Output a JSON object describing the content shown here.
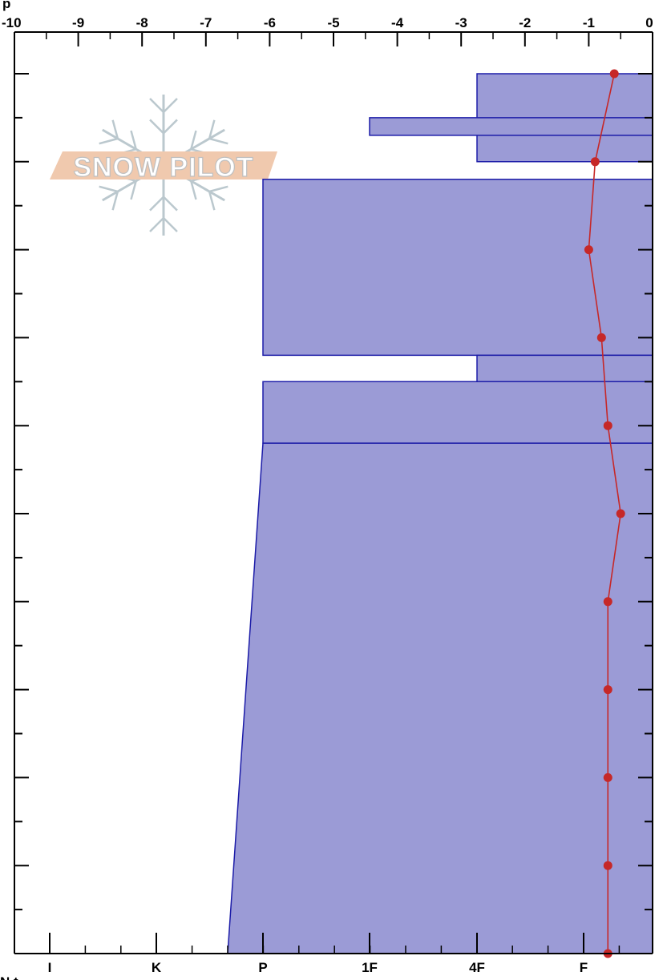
{
  "chart_data": {
    "type": "snow-profile",
    "title": "",
    "temperature_axis": {
      "ticks": [
        -10,
        -9,
        -8,
        -7,
        -6,
        -5,
        -4,
        -3,
        -2,
        -1,
        0
      ],
      "labels": [
        "-10",
        "-9",
        "-8",
        "-7",
        "-6",
        "-5",
        "-4",
        "-3",
        "-2",
        "-1",
        "0"
      ],
      "range": [
        -10,
        0
      ]
    },
    "hardness_axis": {
      "labels": [
        "I",
        "K",
        "P",
        "1F",
        "4F",
        "F"
      ]
    },
    "depth_axis": {
      "range": [
        0,
        100
      ],
      "grid": false
    },
    "hardness_layers": [
      {
        "top": 0,
        "bottom": 10,
        "hardness_top": "4F",
        "hardness_bottom": "4F",
        "hardness_value_top": 1.0,
        "hardness_value_bottom": 1.0
      },
      {
        "top": 5,
        "bottom": 7,
        "hardness_top": "1F-",
        "hardness_bottom": "1F-",
        "hardness_value_top": 1.75,
        "hardness_value_bottom": 1.75
      },
      {
        "top": 12,
        "bottom": 32,
        "hardness_top": "P",
        "hardness_bottom": "P",
        "hardness_value_top": 3.0,
        "hardness_value_bottom": 3.0
      },
      {
        "top": 32,
        "bottom": 35,
        "hardness_top": "4F",
        "hardness_bottom": "4F",
        "hardness_value_top": 1.0,
        "hardness_value_bottom": 1.0
      },
      {
        "top": 35,
        "bottom": 42,
        "hardness_top": "P",
        "hardness_bottom": "P",
        "hardness_value_top": 3.0,
        "hardness_value_bottom": 3.0
      },
      {
        "top": 42,
        "bottom": 100,
        "hardness_top": "P",
        "hardness_bottom": "P+",
        "hardness_value_top": 3.0,
        "hardness_value_bottom": 3.3
      }
    ],
    "temperature_profile": {
      "depth": [
        0,
        10,
        20,
        30,
        40,
        50,
        60,
        70,
        80,
        90,
        100
      ],
      "temp": [
        -0.6,
        -0.9,
        -1.0,
        -0.8,
        -0.7,
        -0.5,
        -0.7,
        -0.7,
        -0.7,
        -0.7,
        -0.7
      ]
    },
    "colors": {
      "layer_fill": "#9b9bd6",
      "layer_stroke": "#1c1ca8",
      "temperature": "#c62828",
      "axis": "#000000"
    }
  },
  "watermark": {
    "text": "SNOW PILOT",
    "colors": {
      "band": "#efc4a6",
      "flake": "#b4c3c9"
    }
  },
  "clipped_text": {
    "top_left": "p",
    "bottom_left": "N t"
  }
}
